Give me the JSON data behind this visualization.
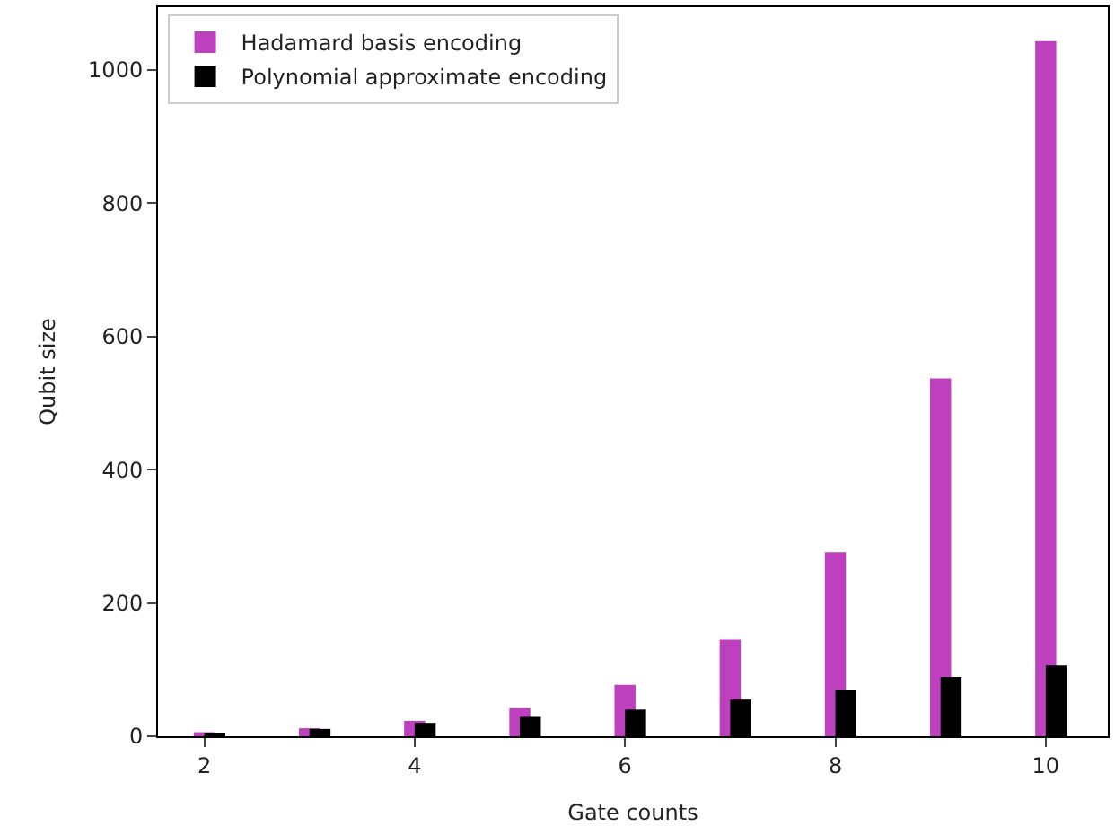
{
  "chart_data": {
    "type": "bar",
    "xlabel": "Gate counts",
    "ylabel": "Qubit size",
    "series": [
      {
        "name": "Hadamard basis encoding",
        "color": "#bf40bf",
        "x": [
          2,
          3,
          4,
          5,
          6,
          7,
          8,
          9,
          10
        ],
        "values": [
          6,
          12,
          23,
          42,
          77,
          145,
          276,
          537,
          1043
        ]
      },
      {
        "name": "Polynomial approximate encoding",
        "color": "#000000",
        "x": [
          2.1,
          3.1,
          4.1,
          5.1,
          6.1,
          7.1,
          8.1,
          9.1,
          10.1
        ],
        "values": [
          5,
          11,
          20,
          29,
          40,
          55,
          70,
          89,
          106
        ]
      }
    ],
    "xlim": [
      1.56,
      10.59
    ],
    "xticks": [
      2,
      4,
      6,
      8,
      10
    ],
    "ylim": [
      0,
      1094
    ],
    "yticks": [
      0,
      200,
      400,
      600,
      800,
      1000
    ],
    "legend": "top left"
  }
}
